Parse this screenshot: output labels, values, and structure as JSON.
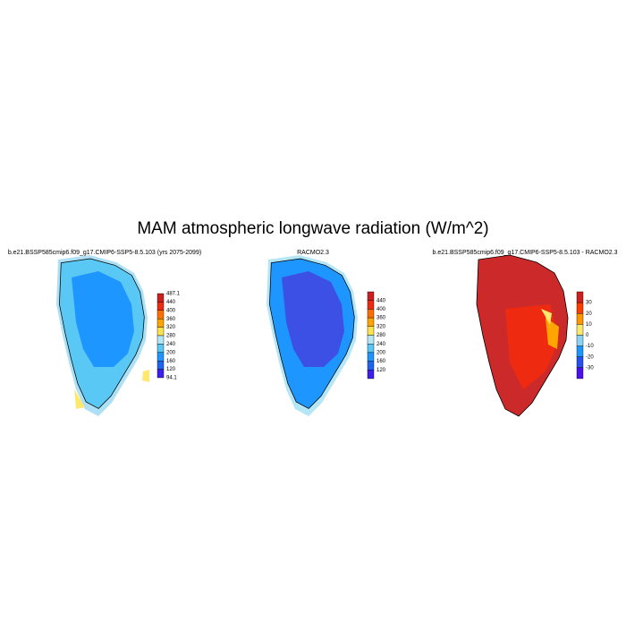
{
  "title": "MAM atmospheric longwave radiation (W/m^2)",
  "panels": [
    {
      "title": "b.e21.BSSP585cmip6.f09_g17.CMIP6-SSP5-8.5.103 (yrs 2075-2099)",
      "colorbar": {
        "end_labels": true,
        "labels": [
          "487.1",
          "440",
          "400",
          "360",
          "320",
          "280",
          "240",
          "200",
          "160",
          "120",
          "94.1"
        ],
        "colors": [
          "#cc1f1f",
          "#ee2a10",
          "#ff6e00",
          "#ffa500",
          "#ffe24d",
          "#b4e6f5",
          "#5ac8f5",
          "#1e96ff",
          "#1e64f0",
          "#3c1ef0"
        ]
      }
    },
    {
      "title": "RACMO2.3",
      "colorbar": {
        "end_labels": false,
        "labels": [
          "440",
          "400",
          "360",
          "320",
          "280",
          "240",
          "200",
          "160",
          "120"
        ],
        "colors": [
          "#cc1f1f",
          "#ee2a10",
          "#ff6e00",
          "#ffa500",
          "#ffe24d",
          "#b4e6f5",
          "#5ac8f5",
          "#1e96ff",
          "#1e64f0",
          "#3c1ef0"
        ]
      }
    },
    {
      "title": "b.e21.BSSP585cmip6.f09_g17.CMIP6-SSP5-8.5.103 - RACMO2.3",
      "colorbar": {
        "end_labels": false,
        "labels": [
          "30",
          "20",
          "10",
          "0",
          "-10",
          "-20",
          "-30"
        ],
        "colors": [
          "#cc1f1f",
          "#ff3c00",
          "#ff9600",
          "#ffe86e",
          "#8cd2f5",
          "#1e96ff",
          "#2850f0",
          "#4b0ff0"
        ]
      }
    }
  ]
}
